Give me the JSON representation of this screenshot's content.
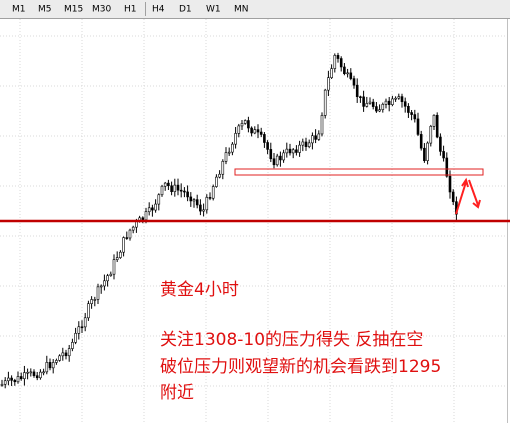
{
  "toolbar": {
    "timeframes": [
      "M1",
      "M5",
      "M15",
      "M30",
      "H1",
      "H4",
      "D1",
      "W1",
      "MN"
    ]
  },
  "annotations": {
    "title": "黄金4小时",
    "lines": [
      "关注1308-10的压力得失  反抽在空",
      "破位压力则观望新的机会看跌到1295",
      "附近"
    ]
  }
}
